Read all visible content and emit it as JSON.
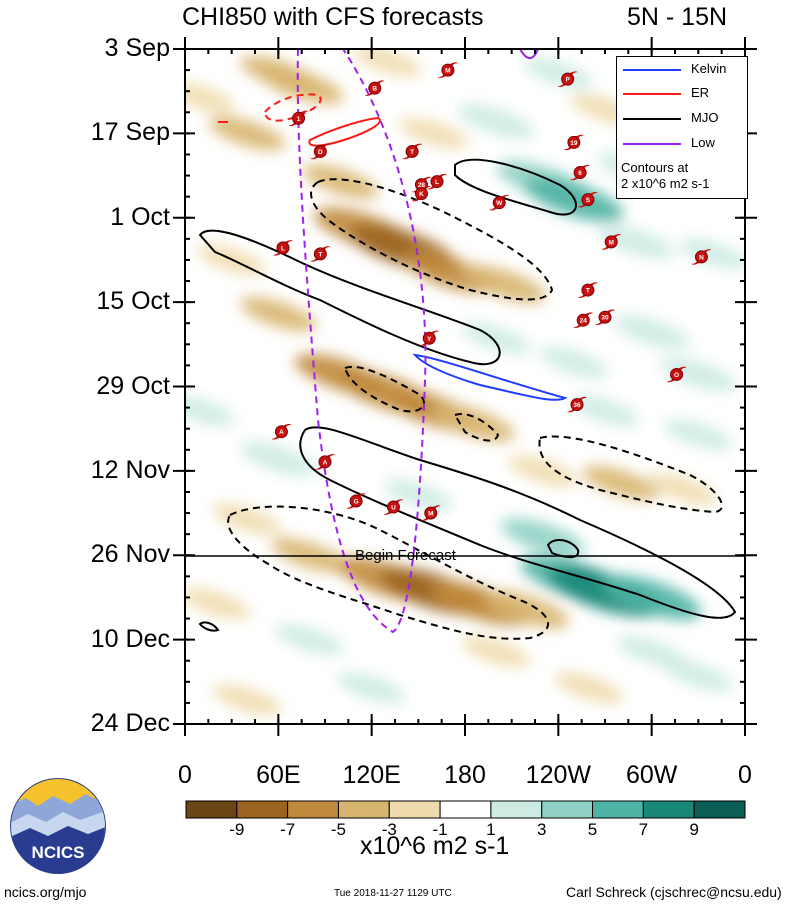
{
  "header": {
    "title": "CHI850 with CFS forecasts",
    "latitude_band": "5N - 15N"
  },
  "chart_data": {
    "type": "heatmap",
    "title": "CHI850 with CFS forecasts",
    "subtitle": "5N - 15N",
    "x_ticks": [
      "0",
      "60E",
      "120E",
      "180",
      "120W",
      "60W",
      "0"
    ],
    "x_range_deg": [
      0,
      360
    ],
    "y_ticks": [
      "3 Sep",
      "17 Sep",
      "1 Oct",
      "15 Oct",
      "29 Oct",
      "12 Nov",
      "26 Nov",
      "10 Dec",
      "24 Dec"
    ],
    "y_range_days": [
      0,
      112
    ],
    "forecast_start": "26 Nov",
    "forecast_label": "Begin Forecast",
    "colorbar": {
      "labels": [
        "-9",
        "-7",
        "-5",
        "-3",
        "-1",
        "1",
        "3",
        "5",
        "7",
        "9"
      ],
      "colors": [
        "#6b4514",
        "#9a6420",
        "#c08a3c",
        "#d8b56e",
        "#efdcae",
        "#ffffff",
        "#cdebe3",
        "#8fd1c4",
        "#4db3a4",
        "#1a8878",
        "#0b5e55"
      ],
      "units": "x10^6 m2 s-1"
    },
    "legend": [
      {
        "label": "Kelvin",
        "color": "#1f3cff",
        "style": "solid"
      },
      {
        "label": "ER",
        "color": "#ff1a1a",
        "style": "solid"
      },
      {
        "label": "MJO",
        "color": "#000000",
        "style": "solid"
      },
      {
        "label": "Low",
        "color": "#a020f0",
        "style": "solid"
      }
    ],
    "contour_note_line1": "Contours at",
    "contour_note_line2": "2 x10^6 m2 s-1",
    "anomaly_patches": [
      {
        "lon": 60,
        "day": 4,
        "value": -3
      },
      {
        "lon": 75,
        "day": 6,
        "value": -4
      },
      {
        "lon": 10,
        "day": 8,
        "value": -2
      },
      {
        "lon": 130,
        "day": 2,
        "value": -2
      },
      {
        "lon": 240,
        "day": 4,
        "value": 2
      },
      {
        "lon": 200,
        "day": 12,
        "value": 3
      },
      {
        "lon": 270,
        "day": 10,
        "value": -2
      },
      {
        "lon": 40,
        "day": 14,
        "value": -3
      },
      {
        "lon": 160,
        "day": 14,
        "value": -2
      },
      {
        "lon": 230,
        "day": 22,
        "value": 5
      },
      {
        "lon": 250,
        "day": 25,
        "value": 6
      },
      {
        "lon": 290,
        "day": 20,
        "value": 3
      },
      {
        "lon": 320,
        "day": 16,
        "value": 2
      },
      {
        "lon": 100,
        "day": 22,
        "value": -3
      },
      {
        "lon": 115,
        "day": 30,
        "value": -6
      },
      {
        "lon": 140,
        "day": 33,
        "value": -7
      },
      {
        "lon": 170,
        "day": 37,
        "value": -5
      },
      {
        "lon": 205,
        "day": 39,
        "value": -4
      },
      {
        "lon": 290,
        "day": 32,
        "value": 3
      },
      {
        "lon": 340,
        "day": 34,
        "value": 2
      },
      {
        "lon": 30,
        "day": 35,
        "value": -2
      },
      {
        "lon": 60,
        "day": 44,
        "value": -3
      },
      {
        "lon": 200,
        "day": 48,
        "value": 2
      },
      {
        "lon": 250,
        "day": 52,
        "value": 2
      },
      {
        "lon": 300,
        "day": 47,
        "value": 3
      },
      {
        "lon": 330,
        "day": 54,
        "value": 3
      },
      {
        "lon": 100,
        "day": 54,
        "value": -5
      },
      {
        "lon": 130,
        "day": 57,
        "value": -6
      },
      {
        "lon": 160,
        "day": 60,
        "value": -5
      },
      {
        "lon": 185,
        "day": 62,
        "value": -4
      },
      {
        "lon": 10,
        "day": 60,
        "value": 2
      },
      {
        "lon": 270,
        "day": 60,
        "value": 2
      },
      {
        "lon": 330,
        "day": 64,
        "value": 2
      },
      {
        "lon": 60,
        "day": 68,
        "value": 3
      },
      {
        "lon": 230,
        "day": 70,
        "value": -2
      },
      {
        "lon": 280,
        "day": 72,
        "value": -3
      },
      {
        "lon": 320,
        "day": 73,
        "value": -2
      },
      {
        "lon": 150,
        "day": 74,
        "value": 2
      },
      {
        "lon": 40,
        "day": 78,
        "value": -2
      },
      {
        "lon": 230,
        "day": 81,
        "value": 4
      },
      {
        "lon": 80,
        "day": 84,
        "value": -3
      },
      {
        "lon": 130,
        "day": 88,
        "value": -6
      },
      {
        "lon": 160,
        "day": 90,
        "value": -7
      },
      {
        "lon": 190,
        "day": 92,
        "value": -6
      },
      {
        "lon": 220,
        "day": 93,
        "value": -4
      },
      {
        "lon": 250,
        "day": 88,
        "value": 7
      },
      {
        "lon": 270,
        "day": 90,
        "value": 8
      },
      {
        "lon": 300,
        "day": 91,
        "value": 6
      },
      {
        "lon": 20,
        "day": 92,
        "value": -2
      },
      {
        "lon": 80,
        "day": 98,
        "value": 2
      },
      {
        "lon": 200,
        "day": 100,
        "value": -2
      },
      {
        "lon": 300,
        "day": 100,
        "value": 2
      },
      {
        "lon": 120,
        "day": 106,
        "value": 2
      },
      {
        "lon": 40,
        "day": 108,
        "value": -2
      },
      {
        "lon": 260,
        "day": 106,
        "value": -2
      },
      {
        "lon": 330,
        "day": 104,
        "value": 2
      }
    ],
    "storms": [
      {
        "label": "M",
        "lon": 169,
        "day": 3.5
      },
      {
        "label": "P",
        "lon": 246,
        "day": 5
      },
      {
        "label": "B",
        "lon": 122,
        "day": 6.5
      },
      {
        "label": "1",
        "lon": 73,
        "day": 11.5
      },
      {
        "label": "D",
        "lon": 87,
        "day": 17
      },
      {
        "lon": 146,
        "day": 17,
        "label": "T"
      },
      {
        "label": "19",
        "lon": 250,
        "day": 15.5
      },
      {
        "label": "6",
        "lon": 254,
        "day": 20.5
      },
      {
        "label": "28",
        "lon": 152,
        "day": 22.5
      },
      {
        "label": "K",
        "lon": 152,
        "day": 24
      },
      {
        "label": "L",
        "lon": 162,
        "day": 22
      },
      {
        "label": "W",
        "lon": 202,
        "day": 25.5
      },
      {
        "label": "S",
        "lon": 259,
        "day": 25
      },
      {
        "label": "M",
        "lon": 274,
        "day": 32
      },
      {
        "label": "L",
        "lon": 63,
        "day": 33
      },
      {
        "label": "T",
        "lon": 87,
        "day": 34
      },
      {
        "label": "N",
        "lon": 332,
        "day": 34.5
      },
      {
        "label": "T",
        "lon": 259,
        "day": 40
      },
      {
        "label": "24",
        "lon": 256,
        "day": 45
      },
      {
        "label": "30",
        "lon": 270,
        "day": 44.5
      },
      {
        "label": "Y",
        "lon": 157,
        "day": 48
      },
      {
        "label": "O",
        "lon": 316,
        "day": 54
      },
      {
        "label": "36",
        "lon": 252,
        "day": 59
      },
      {
        "label": "A",
        "lon": 62,
        "day": 63.5
      },
      {
        "label": "A",
        "lon": 90,
        "day": 68.5
      },
      {
        "label": "G",
        "lon": 110,
        "day": 75
      },
      {
        "label": "U",
        "lon": 134,
        "day": 76
      },
      {
        "label": "M",
        "lon": 158,
        "day": 77
      }
    ]
  },
  "branding": {
    "logo_text": "NCICS"
  },
  "footer": {
    "left": "ncics.org/mjo",
    "timestamp": "Tue 2018-11-27 1129 UTC",
    "author": "Carl Schreck (cjschrec@ncsu.edu)"
  }
}
